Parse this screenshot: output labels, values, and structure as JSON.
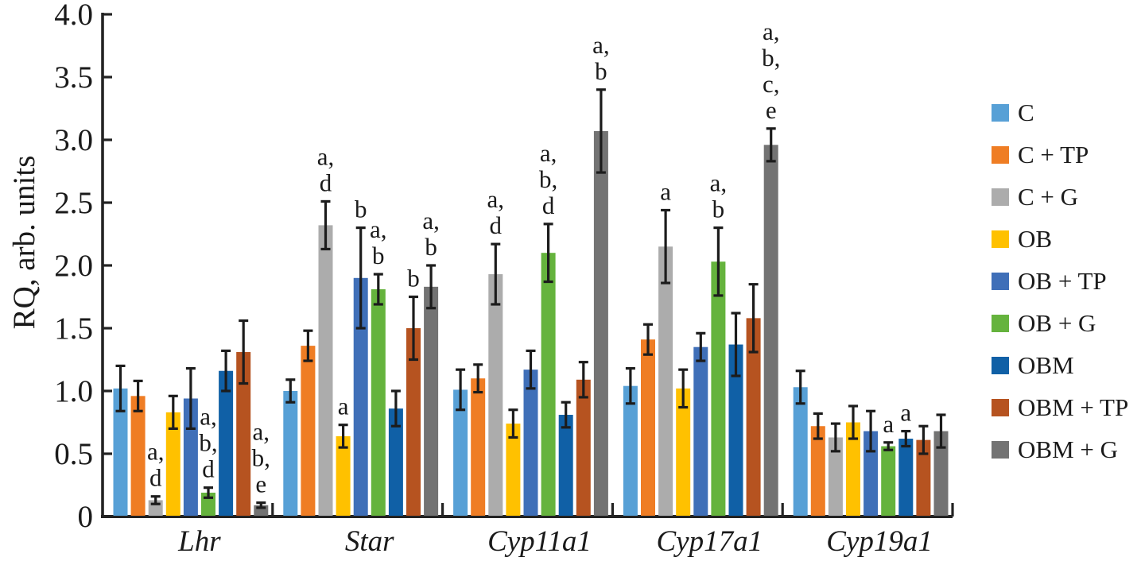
{
  "chart_data": {
    "type": "bar",
    "title": "",
    "ylabel": "RQ, arb. units",
    "xlabel": "",
    "ylim": [
      0,
      4.0
    ],
    "ytick_step": 0.5,
    "ytick_labels": [
      "0",
      "0.5",
      "1.0",
      "1.5",
      "2.0",
      "2.5",
      "3.0",
      "3.5",
      "4.0"
    ],
    "grid": false,
    "legend_position": "right",
    "error_bars": true,
    "axis_color": "#232323",
    "error_bar_color": "#1c1c1c",
    "text_color": "#1a1a1a",
    "categories": [
      "Lhr",
      "Star",
      "Cyp11a1",
      "Cyp17a1",
      "Cyp19a1"
    ],
    "series": [
      {
        "name": "C",
        "color": "#57A0D6",
        "values": [
          1.02,
          1.0,
          1.01,
          1.04,
          1.03
        ],
        "errors": [
          0.18,
          0.09,
          0.16,
          0.14,
          0.13
        ],
        "sig": [
          null,
          null,
          null,
          null,
          null
        ]
      },
      {
        "name": "C + TP",
        "color": "#EF7D24",
        "values": [
          0.96,
          1.36,
          1.1,
          1.41,
          0.72
        ],
        "errors": [
          0.12,
          0.12,
          0.11,
          0.12,
          0.1
        ],
        "sig": [
          null,
          null,
          null,
          null,
          null
        ]
      },
      {
        "name": "C + G",
        "color": "#ACACAC",
        "values": [
          0.13,
          2.32,
          1.93,
          2.15,
          0.63
        ],
        "errors": [
          0.03,
          0.19,
          0.24,
          0.29,
          0.11
        ],
        "sig": [
          [
            "a",
            "d"
          ],
          [
            "a",
            "d"
          ],
          [
            "a",
            "d"
          ],
          [
            "a"
          ],
          null
        ]
      },
      {
        "name": "OB",
        "color": "#FFC100",
        "values": [
          0.83,
          0.64,
          0.74,
          1.02,
          0.75
        ],
        "errors": [
          0.13,
          0.09,
          0.11,
          0.15,
          0.13
        ],
        "sig": [
          null,
          [
            "a"
          ],
          null,
          null,
          null
        ]
      },
      {
        "name": "OB + TP",
        "color": "#3F6FB8",
        "values": [
          0.94,
          1.9,
          1.17,
          1.35,
          0.68
        ],
        "errors": [
          0.24,
          0.4,
          0.15,
          0.11,
          0.16
        ],
        "sig": [
          null,
          [
            "b"
          ],
          null,
          null,
          null
        ]
      },
      {
        "name": "OB + G",
        "color": "#65B33D",
        "values": [
          0.19,
          1.81,
          2.1,
          2.03,
          0.56
        ],
        "errors": [
          0.04,
          0.12,
          0.23,
          0.27,
          0.03
        ],
        "sig": [
          [
            "a",
            "b",
            "d"
          ],
          [
            "a",
            "b"
          ],
          [
            "a",
            "b",
            "d"
          ],
          [
            "a",
            "b"
          ],
          [
            "a"
          ]
        ]
      },
      {
        "name": "OBM",
        "color": "#1060A6",
        "values": [
          1.16,
          0.86,
          0.81,
          1.37,
          0.62
        ],
        "errors": [
          0.16,
          0.14,
          0.1,
          0.25,
          0.06
        ],
        "sig": [
          null,
          null,
          null,
          null,
          [
            "a"
          ]
        ]
      },
      {
        "name": "OBM + TP",
        "color": "#B65320",
        "values": [
          1.31,
          1.5,
          1.09,
          1.58,
          0.61
        ],
        "errors": [
          0.25,
          0.25,
          0.14,
          0.27,
          0.11
        ],
        "sig": [
          null,
          [
            "b"
          ],
          null,
          null,
          null
        ]
      },
      {
        "name": "OBM + G",
        "color": "#737373",
        "values": [
          0.09,
          1.83,
          3.07,
          2.96,
          0.68
        ],
        "errors": [
          0.02,
          0.17,
          0.33,
          0.13,
          0.13
        ],
        "sig": [
          [
            "a",
            "b",
            "e"
          ],
          [
            "a",
            "b"
          ],
          [
            "a",
            "b"
          ],
          [
            "a",
            "b",
            "c",
            "e"
          ],
          null
        ]
      }
    ]
  }
}
